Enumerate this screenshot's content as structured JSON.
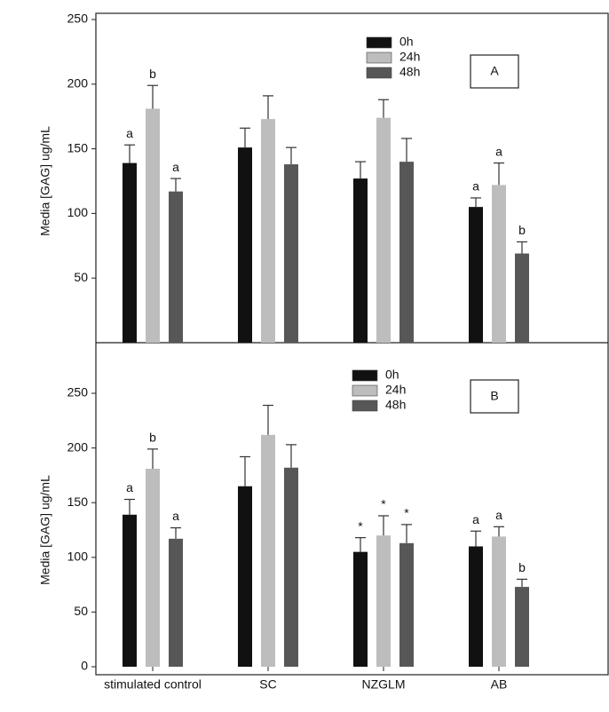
{
  "chart_data": [
    {
      "type": "bar",
      "panel": "A",
      "ylabel": "Media [GAG] ug/mL",
      "ylim": [
        0,
        250
      ],
      "yticks": [
        50,
        100,
        150,
        200,
        250
      ],
      "series": [
        {
          "name": "0h",
          "color": "#111111",
          "values": [
            139,
            151,
            127,
            105
          ],
          "errors": [
            14,
            15,
            13,
            7
          ],
          "labels": [
            "a",
            null,
            null,
            "a"
          ]
        },
        {
          "name": "24h",
          "color": "#bdbdbd",
          "values": [
            181,
            173,
            174,
            122
          ],
          "errors": [
            18,
            18,
            14,
            17
          ],
          "labels": [
            "b",
            null,
            null,
            "a"
          ]
        },
        {
          "name": "48h",
          "color": "#575757",
          "values": [
            117,
            138,
            140,
            69
          ],
          "errors": [
            10,
            13,
            18,
            9
          ],
          "labels": [
            "a",
            null,
            null,
            "b"
          ]
        }
      ]
    },
    {
      "type": "bar",
      "panel": "B",
      "ylabel": "Media [GAG] ug/mL",
      "categories": [
        "stimulated control",
        "SC",
        "NZGLM",
        "AB"
      ],
      "ylim": [
        0,
        250
      ],
      "yticks": [
        0,
        50,
        100,
        150,
        200,
        250
      ],
      "series": [
        {
          "name": "0h",
          "color": "#111111",
          "values": [
            139,
            165,
            105,
            110
          ],
          "errors": [
            14,
            27,
            13,
            14
          ],
          "labels": [
            "a",
            null,
            "*",
            "a"
          ]
        },
        {
          "name": "24h",
          "color": "#bdbdbd",
          "values": [
            181,
            212,
            120,
            119
          ],
          "errors": [
            18,
            27,
            18,
            9
          ],
          "labels": [
            "b",
            null,
            "*",
            "a"
          ]
        },
        {
          "name": "48h",
          "color": "#575757",
          "values": [
            117,
            182,
            113,
            73
          ],
          "errors": [
            10,
            21,
            17,
            7
          ],
          "labels": [
            "a",
            null,
            "*",
            "b"
          ]
        }
      ]
    }
  ]
}
